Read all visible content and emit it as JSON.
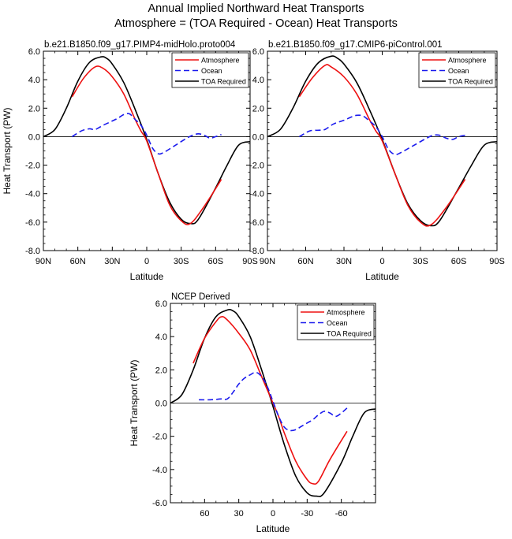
{
  "figure": {
    "title_line1": "Annual Implied Northward Heat Transports",
    "title_line2": "Atmosphere = (TOA Required - Ocean) Heat Transports"
  },
  "colors": {
    "atmosphere": "#ee1111",
    "ocean": "#1a1aee",
    "toa": "#000000"
  },
  "chart_data": [
    {
      "type": "line",
      "title": "b.e21.B1850.f09_g17.PIMP4-midHolo.proto004",
      "xlabel": "Latitude",
      "ylabel": "Heat Transport (PW)",
      "xlim": [
        90,
        -90
      ],
      "ylim": [
        -8,
        6
      ],
      "x_ticks": [
        90,
        60,
        30,
        0,
        -30,
        -60,
        -90
      ],
      "x_tick_labels": [
        "90N",
        "60N",
        "30N",
        "0",
        "30S",
        "60S",
        "90S"
      ],
      "y_ticks": [
        6,
        4,
        2,
        0,
        -2,
        -4,
        -6,
        -8
      ],
      "y_tick_labels": [
        "6.0",
        "4.0",
        "2.0",
        "0.0",
        "-2.0",
        "-4.0",
        "-6.0",
        "-8.0"
      ],
      "grid": false,
      "legend_position": "top-right",
      "series": [
        {
          "name": "Atmosphere",
          "style": "solid",
          "x": [
            65,
            55,
            45,
            38,
            30,
            20,
            10,
            5,
            0,
            -10,
            -20,
            -30,
            -38,
            -50,
            -65
          ],
          "y": [
            2.8,
            4.1,
            4.9,
            4.8,
            4.2,
            3.0,
            1.2,
            0.4,
            -0.3,
            -2.6,
            -4.8,
            -5.9,
            -6.1,
            -4.9,
            -3.0
          ]
        },
        {
          "name": "Ocean",
          "style": "dashed",
          "x": [
            65,
            57,
            50,
            45,
            38,
            30,
            25,
            20,
            15,
            10,
            5,
            0,
            -5,
            -10,
            -15,
            -25,
            -35,
            -40,
            -45,
            -50,
            -55,
            -60,
            -65
          ],
          "y": [
            0.0,
            0.4,
            0.55,
            0.5,
            0.8,
            1.1,
            1.3,
            1.55,
            1.6,
            1.2,
            0.8,
            0.1,
            -0.8,
            -1.2,
            -1.1,
            -0.6,
            -0.1,
            0.1,
            0.2,
            0.1,
            -0.1,
            0.0,
            0.15
          ]
        },
        {
          "name": "TOA Required",
          "style": "solid",
          "x": [
            90,
            80,
            70,
            60,
            50,
            40,
            35,
            30,
            20,
            10,
            0,
            -10,
            -20,
            -30,
            -38,
            -45,
            -60,
            -70,
            -80,
            -90
          ],
          "y": [
            0.0,
            0.5,
            2.0,
            3.9,
            5.2,
            5.6,
            5.5,
            5.1,
            3.8,
            1.9,
            -0.2,
            -2.6,
            -4.6,
            -5.8,
            -6.1,
            -5.8,
            -3.6,
            -2.0,
            -0.6,
            -0.35
          ]
        }
      ]
    },
    {
      "type": "line",
      "title": "b.e21.B1850.f09_g17.CMIP6-piControl.001",
      "xlabel": "Latitude",
      "ylabel": "",
      "xlim": [
        90,
        -90
      ],
      "ylim": [
        -8,
        6
      ],
      "x_ticks": [
        90,
        60,
        30,
        0,
        -30,
        -60,
        -90
      ],
      "x_tick_labels": [
        "90N",
        "60N",
        "30N",
        "0",
        "30S",
        "60S",
        "90S"
      ],
      "y_ticks": [
        6,
        4,
        2,
        0,
        -2,
        -4,
        -6,
        -8
      ],
      "y_tick_labels": [
        "6.0",
        "4.0",
        "2.0",
        "0.0",
        "-2.0",
        "-4.0",
        "-6.0",
        "-8.0"
      ],
      "grid": false,
      "legend_position": "top-right",
      "series": [
        {
          "name": "Atmosphere",
          "style": "solid",
          "x": [
            65,
            55,
            45,
            40,
            30,
            20,
            10,
            5,
            0,
            -10,
            -20,
            -30,
            -38,
            -50,
            -65
          ],
          "y": [
            2.8,
            4.1,
            5.0,
            4.9,
            4.2,
            3.0,
            1.2,
            0.4,
            -0.3,
            -2.6,
            -4.8,
            -6.0,
            -6.2,
            -5.0,
            -3.0
          ]
        },
        {
          "name": "Ocean",
          "style": "dashed",
          "x": [
            65,
            57,
            50,
            45,
            38,
            30,
            25,
            20,
            15,
            10,
            5,
            0,
            -5,
            -10,
            -15,
            -25,
            -35,
            -40,
            -45,
            -50,
            -55,
            -60,
            -65
          ],
          "y": [
            0.0,
            0.4,
            0.45,
            0.5,
            0.9,
            1.15,
            1.35,
            1.5,
            1.45,
            1.1,
            0.7,
            0.0,
            -0.9,
            -1.25,
            -1.1,
            -0.6,
            -0.1,
            0.1,
            0.1,
            -0.1,
            -0.2,
            0.0,
            0.1
          ]
        },
        {
          "name": "TOA Required",
          "style": "solid",
          "x": [
            90,
            80,
            70,
            60,
            50,
            40,
            35,
            30,
            20,
            10,
            0,
            -10,
            -20,
            -30,
            -38,
            -45,
            -60,
            -70,
            -80,
            -90
          ],
          "y": [
            0.0,
            0.5,
            2.0,
            3.9,
            5.2,
            5.65,
            5.5,
            5.1,
            3.8,
            1.9,
            -0.2,
            -2.6,
            -4.7,
            -5.9,
            -6.25,
            -5.9,
            -3.6,
            -2.0,
            -0.6,
            -0.35
          ]
        }
      ]
    },
    {
      "type": "line",
      "title": "NCEP Derived",
      "xlabel": "Latitude",
      "ylabel": "Heat Transport (PW)",
      "xlim": [
        90,
        -90
      ],
      "ylim": [
        -6,
        6
      ],
      "x_ticks": [
        60,
        30,
        0,
        -30,
        -60
      ],
      "x_tick_labels": [
        "60",
        "30",
        "0",
        "-30",
        "-60"
      ],
      "y_ticks": [
        6,
        4,
        2,
        0,
        -2,
        -4,
        -6
      ],
      "y_tick_labels": [
        "6.0",
        "4.0",
        "2.0",
        "0.0",
        "-2.0",
        "-4.0",
        "-6.0"
      ],
      "grid": false,
      "legend_position": "top-right",
      "series": [
        {
          "name": "Atmosphere",
          "style": "solid",
          "x": [
            70,
            60,
            50,
            45,
            40,
            30,
            20,
            10,
            0,
            -5,
            -10,
            -20,
            -30,
            -35,
            -40,
            -50,
            -65
          ],
          "y": [
            2.4,
            3.9,
            4.9,
            5.2,
            5.0,
            4.2,
            3.2,
            1.6,
            0.0,
            -0.8,
            -1.8,
            -3.5,
            -4.6,
            -4.85,
            -4.7,
            -3.4,
            -1.7
          ]
        },
        {
          "name": "Ocean",
          "style": "dashed",
          "x": [
            65,
            55,
            45,
            40,
            35,
            30,
            25,
            20,
            15,
            10,
            5,
            0,
            -5,
            -10,
            -15,
            -20,
            -25,
            -30,
            -35,
            -40,
            -45,
            -50,
            -55,
            -60,
            -65
          ],
          "y": [
            0.2,
            0.2,
            0.25,
            0.25,
            0.65,
            1.15,
            1.5,
            1.7,
            1.85,
            1.6,
            1.0,
            0.1,
            -0.8,
            -1.45,
            -1.65,
            -1.6,
            -1.4,
            -1.2,
            -1.0,
            -0.7,
            -0.5,
            -0.6,
            -0.8,
            -0.6,
            -0.3
          ]
        },
        {
          "name": "TOA Required",
          "style": "solid",
          "x": [
            90,
            80,
            70,
            60,
            50,
            40,
            35,
            30,
            20,
            10,
            0,
            -10,
            -20,
            -30,
            -38,
            -45,
            -60,
            -70,
            -80,
            -90
          ],
          "y": [
            0.0,
            0.5,
            2.0,
            3.9,
            5.2,
            5.6,
            5.55,
            5.2,
            4.0,
            2.0,
            -0.2,
            -2.5,
            -4.4,
            -5.4,
            -5.6,
            -5.4,
            -3.6,
            -2.0,
            -0.6,
            -0.35
          ]
        }
      ]
    }
  ]
}
